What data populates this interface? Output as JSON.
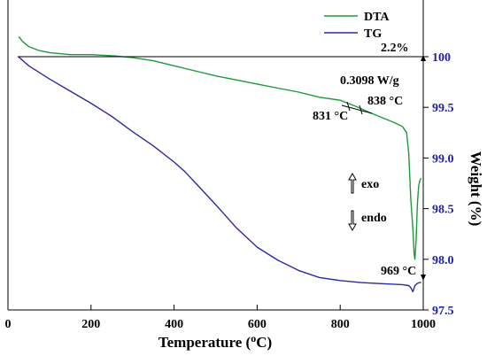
{
  "chart_data": {
    "type": "line",
    "xlabel": "Temperature (°C)",
    "xlabel_parts": {
      "before": "Temperature (",
      "sup": "o",
      "after": "C)"
    },
    "ylabel_right": "Weight (%)",
    "xlim": [
      0,
      1000
    ],
    "ylim_right": [
      97.5,
      100.3
    ],
    "x_ticks": [
      0,
      200,
      400,
      600,
      800,
      1000
    ],
    "x_tick_labels": [
      "0",
      "200",
      "400",
      "600",
      "800",
      "1000"
    ],
    "y_right_ticks": [
      97.5,
      98.0,
      98.5,
      99.0,
      99.5,
      100.0
    ],
    "y_right_tick_labels": [
      "97.5",
      "98.0",
      "98.5",
      "99.0",
      "99.5",
      "100"
    ],
    "legend_position": "top-right",
    "series": [
      {
        "name": "DTA",
        "color": "#1e9a3c",
        "axis": "right",
        "points": [
          [
            25,
            100.19
          ],
          [
            28,
            100.19
          ],
          [
            35,
            100.15
          ],
          [
            50,
            100.1
          ],
          [
            75,
            100.06
          ],
          [
            100,
            100.04
          ],
          [
            150,
            100.02
          ],
          [
            200,
            100.02
          ],
          [
            250,
            100.01
          ],
          [
            300,
            99.99
          ],
          [
            350,
            99.96
          ],
          [
            400,
            99.91
          ],
          [
            450,
            99.86
          ],
          [
            500,
            99.81
          ],
          [
            550,
            99.77
          ],
          [
            600,
            99.73
          ],
          [
            650,
            99.69
          ],
          [
            700,
            99.65
          ],
          [
            750,
            99.6
          ],
          [
            800,
            99.57
          ],
          [
            831,
            99.52
          ],
          [
            838,
            99.51
          ],
          [
            870,
            99.45
          ],
          [
            900,
            99.4
          ],
          [
            930,
            99.35
          ],
          [
            950,
            99.31
          ],
          [
            960,
            99.25
          ],
          [
            965,
            99.05
          ],
          [
            970,
            98.6
          ],
          [
            975,
            98.3
          ],
          [
            978,
            98.05
          ],
          [
            980,
            98.0
          ],
          [
            983,
            98.2
          ],
          [
            986,
            98.55
          ],
          [
            989,
            98.72
          ],
          [
            992,
            98.78
          ],
          [
            995,
            98.8
          ]
        ]
      },
      {
        "name": "TG",
        "color": "#2b2b9e",
        "axis": "right",
        "points": [
          [
            25,
            100.0
          ],
          [
            50,
            99.91
          ],
          [
            100,
            99.78
          ],
          [
            150,
            99.66
          ],
          [
            200,
            99.54
          ],
          [
            250,
            99.41
          ],
          [
            300,
            99.26
          ],
          [
            350,
            99.12
          ],
          [
            400,
            98.96
          ],
          [
            425,
            98.87
          ],
          [
            450,
            98.76
          ],
          [
            500,
            98.54
          ],
          [
            550,
            98.31
          ],
          [
            600,
            98.12
          ],
          [
            650,
            97.99
          ],
          [
            700,
            97.89
          ],
          [
            750,
            97.82
          ],
          [
            800,
            97.79
          ],
          [
            850,
            97.77
          ],
          [
            900,
            97.76
          ],
          [
            950,
            97.75
          ],
          [
            965,
            97.74
          ],
          [
            970,
            97.72
          ],
          [
            975,
            97.68
          ],
          [
            980,
            97.74
          ],
          [
            985,
            97.76
          ],
          [
            990,
            97.77
          ],
          [
            995,
            97.77
          ]
        ]
      }
    ],
    "annotations": {
      "mass_loss": "2.2%",
      "heat_flow": "0.3098 W/g",
      "t1": "831 °C",
      "t2": "838 °C",
      "peak": "969 °C",
      "exo": "exo",
      "endo": "endo"
    }
  }
}
